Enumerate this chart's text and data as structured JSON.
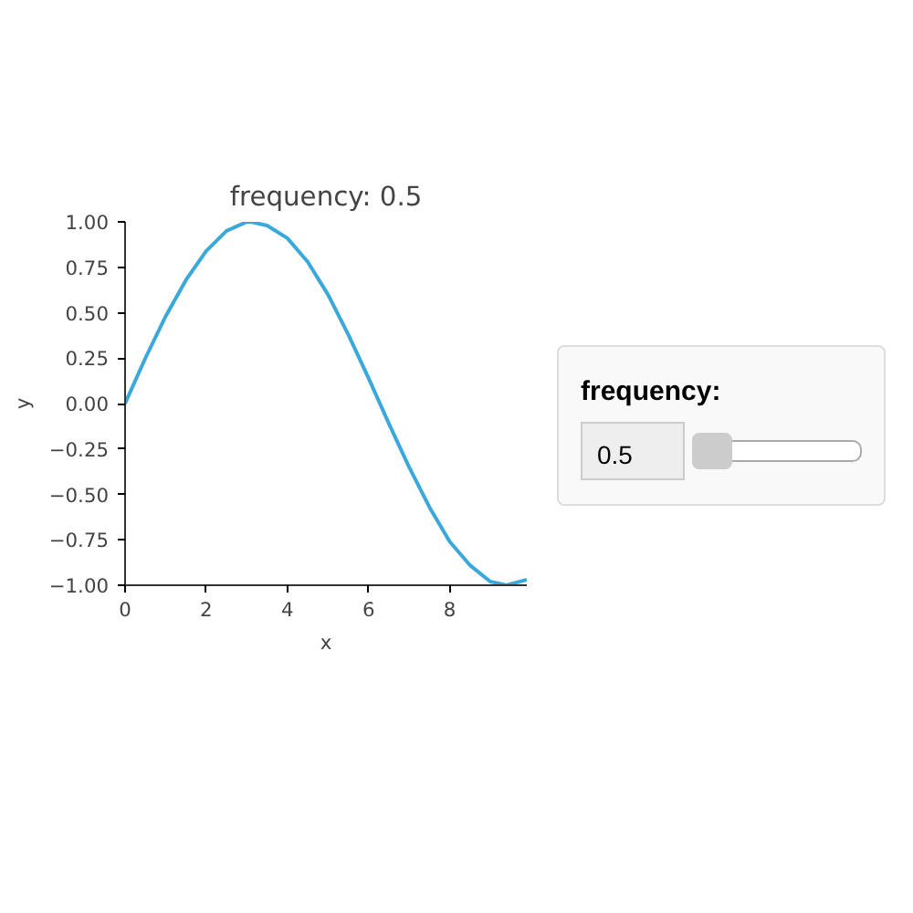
{
  "chart_data": {
    "type": "line",
    "title": "frequency: 0.5",
    "xlabel": "x",
    "ylabel": "y",
    "x": [
      0,
      0.5,
      1,
      1.5,
      2,
      2.5,
      3,
      3.1,
      3.5,
      4,
      4.5,
      5,
      5.5,
      6,
      6.5,
      7,
      7.5,
      8,
      8.5,
      9,
      9.4,
      9.9
    ],
    "series": [
      {
        "color": "#3ba8dc",
        "values": [
          0,
          0.25,
          0.48,
          0.68,
          0.84,
          0.95,
          1.0,
          1.0,
          0.98,
          0.91,
          0.78,
          0.6,
          0.38,
          0.14,
          -0.11,
          -0.35,
          -0.57,
          -0.76,
          -0.89,
          -0.98,
          -1.0,
          -0.97
        ]
      }
    ],
    "xlim": [
      0,
      9.9
    ],
    "ylim": [
      -1,
      1
    ],
    "xticks": [
      0,
      2,
      4,
      6,
      8
    ],
    "yticks": [
      {
        "value": -1,
        "label": "−1.00"
      },
      {
        "value": -0.75,
        "label": "−0.75"
      },
      {
        "value": -0.5,
        "label": "−0.50"
      },
      {
        "value": -0.25,
        "label": "−0.25"
      },
      {
        "value": 0,
        "label": "0.00"
      },
      {
        "value": 0.25,
        "label": "0.25"
      },
      {
        "value": 0.5,
        "label": "0.50"
      },
      {
        "value": 0.75,
        "label": "0.75"
      },
      {
        "value": 1,
        "label": "1.00"
      }
    ],
    "grid": false,
    "line_style": "solid",
    "annotations": [
      "frequency:",
      "0.5"
    ]
  }
}
